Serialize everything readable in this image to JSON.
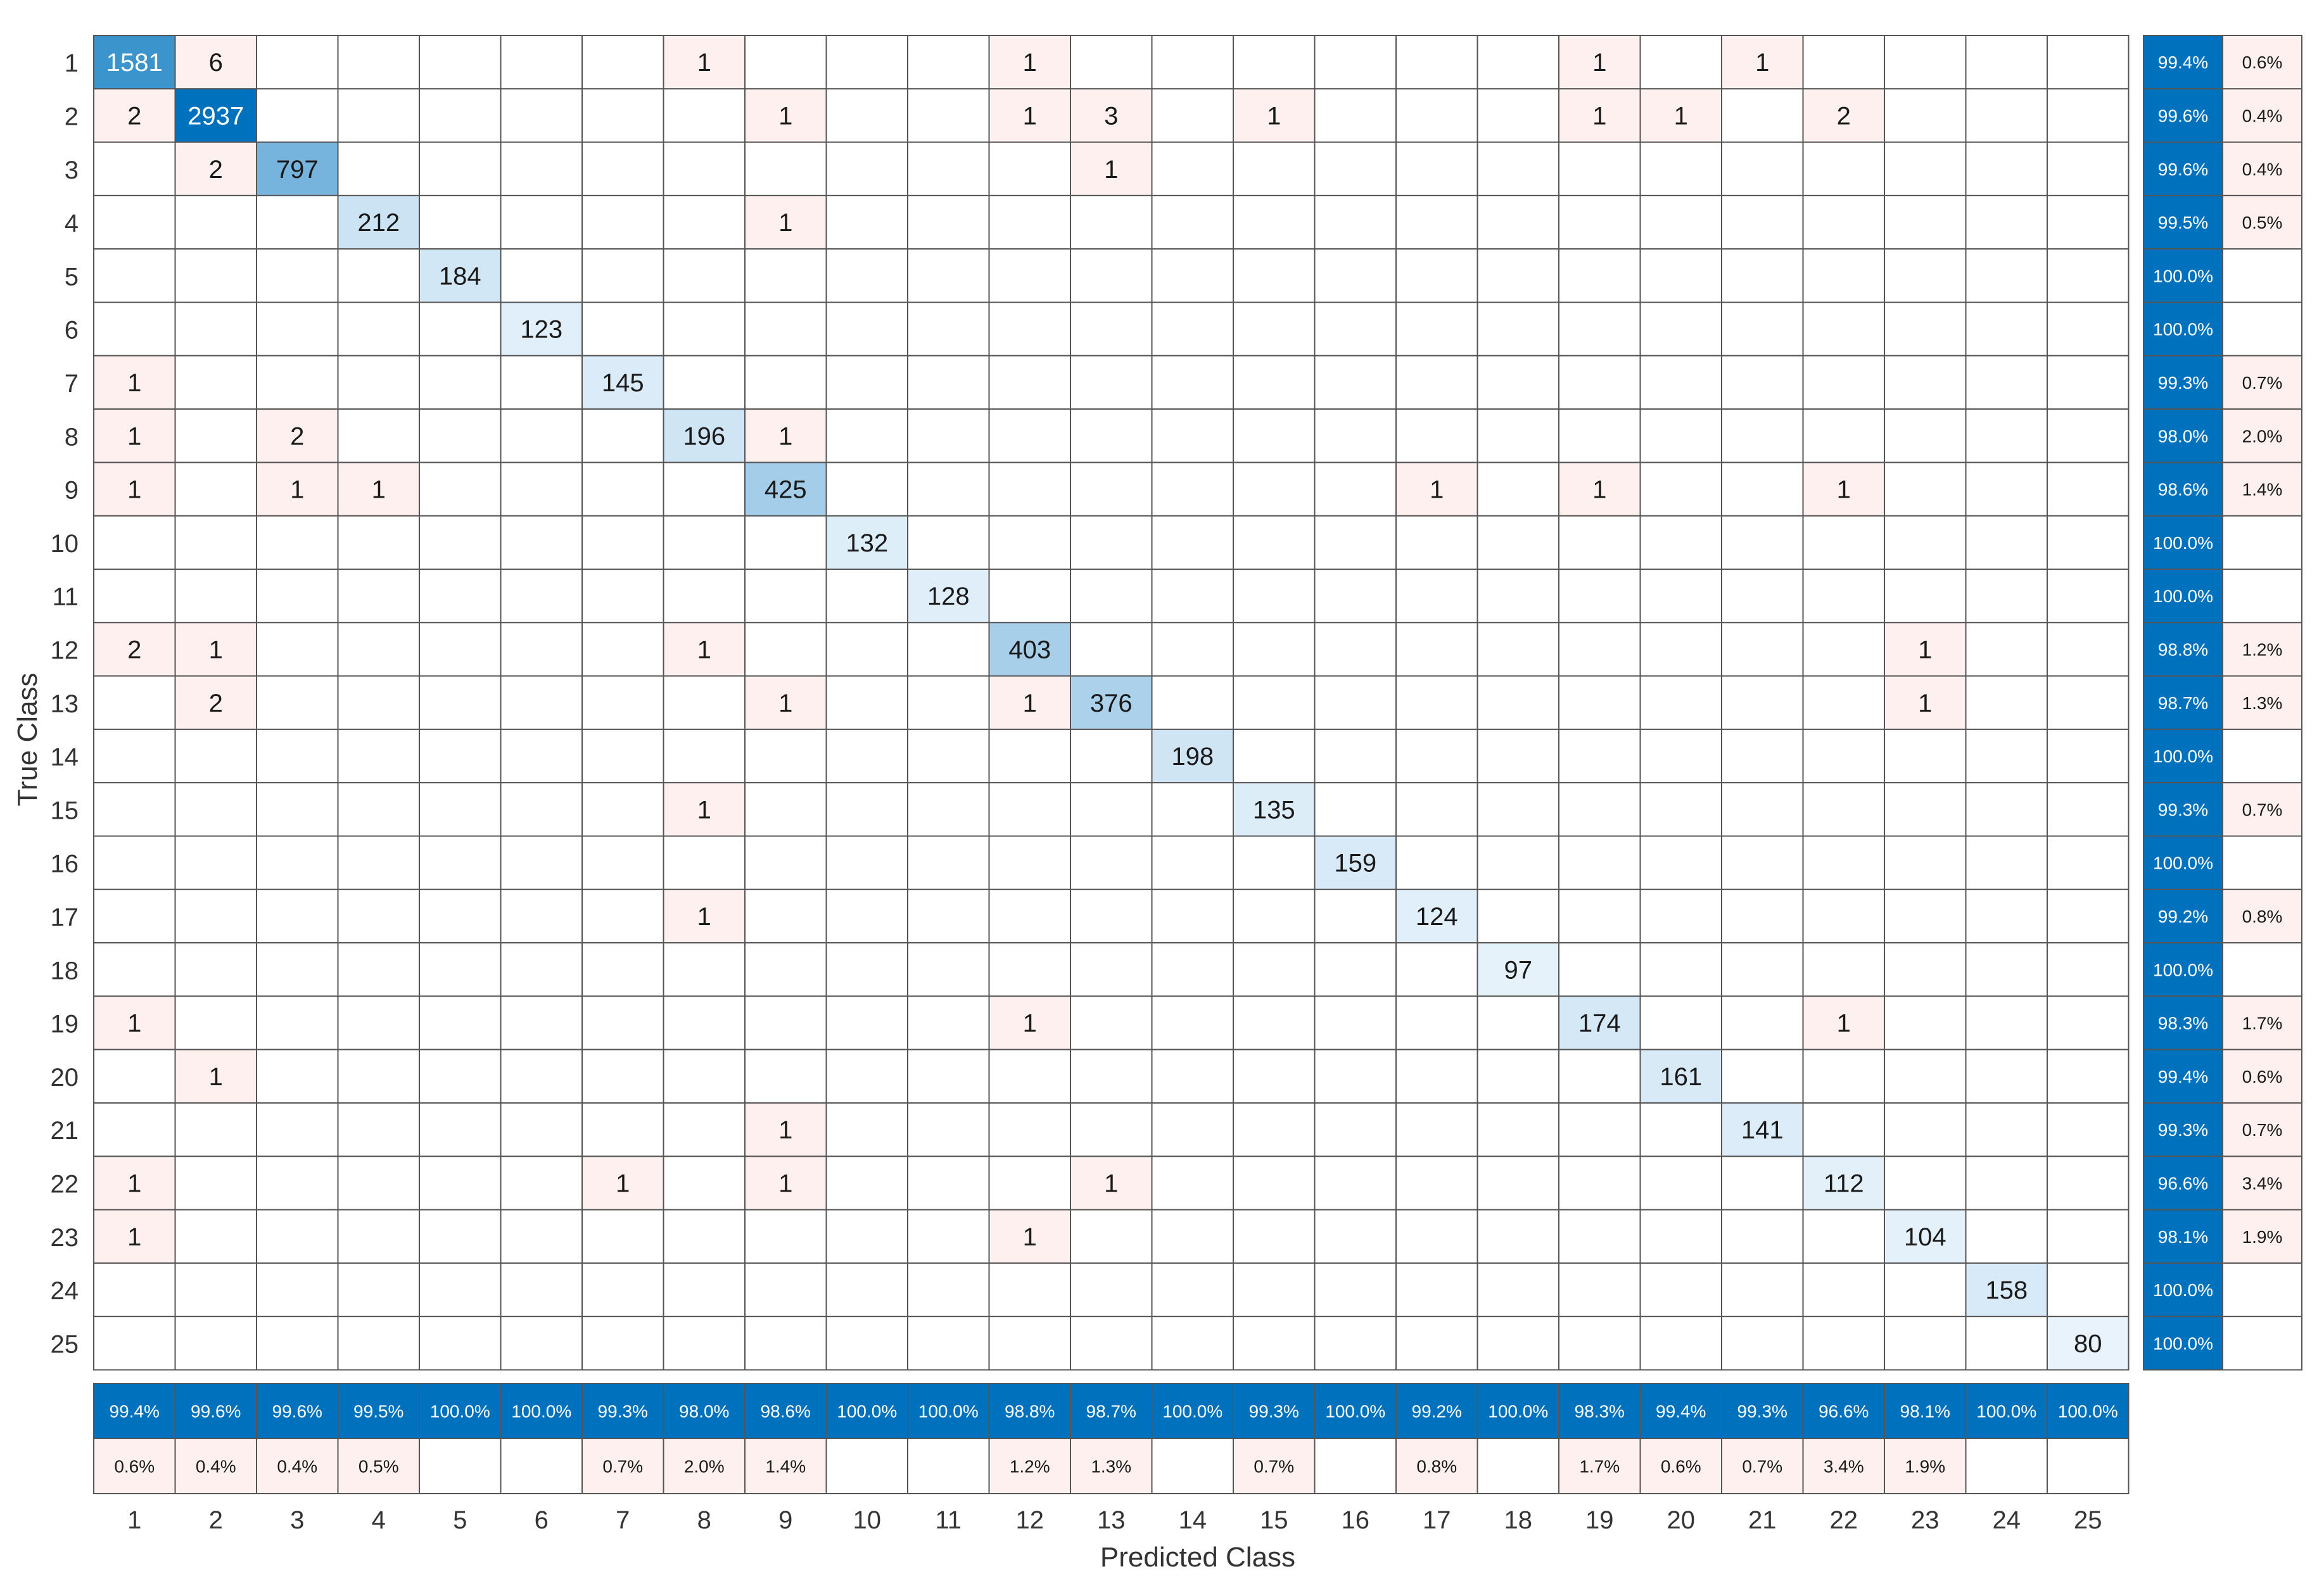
{
  "chart_data": {
    "type": "heatmap",
    "subtype": "confusion-matrix",
    "xlabel": "Predicted Class",
    "ylabel": "True Class",
    "classes": [
      "1",
      "2",
      "3",
      "4",
      "5",
      "6",
      "7",
      "8",
      "9",
      "10",
      "11",
      "12",
      "13",
      "14",
      "15",
      "16",
      "17",
      "18",
      "19",
      "20",
      "21",
      "22",
      "23",
      "24",
      "25"
    ],
    "matrix": [
      [
        1581,
        6,
        0,
        0,
        0,
        0,
        0,
        1,
        0,
        0,
        0,
        1,
        0,
        0,
        0,
        0,
        0,
        0,
        1,
        0,
        1,
        0,
        0,
        0,
        0
      ],
      [
        2,
        2937,
        0,
        0,
        0,
        0,
        0,
        0,
        1,
        0,
        0,
        1,
        3,
        0,
        1,
        0,
        0,
        0,
        1,
        1,
        0,
        2,
        0,
        0,
        0
      ],
      [
        0,
        2,
        797,
        0,
        0,
        0,
        0,
        0,
        0,
        0,
        0,
        0,
        1,
        0,
        0,
        0,
        0,
        0,
        0,
        0,
        0,
        0,
        0,
        0,
        0
      ],
      [
        0,
        0,
        0,
        212,
        0,
        0,
        0,
        0,
        1,
        0,
        0,
        0,
        0,
        0,
        0,
        0,
        0,
        0,
        0,
        0,
        0,
        0,
        0,
        0,
        0
      ],
      [
        0,
        0,
        0,
        0,
        184,
        0,
        0,
        0,
        0,
        0,
        0,
        0,
        0,
        0,
        0,
        0,
        0,
        0,
        0,
        0,
        0,
        0,
        0,
        0,
        0
      ],
      [
        0,
        0,
        0,
        0,
        0,
        123,
        0,
        0,
        0,
        0,
        0,
        0,
        0,
        0,
        0,
        0,
        0,
        0,
        0,
        0,
        0,
        0,
        0,
        0,
        0
      ],
      [
        1,
        0,
        0,
        0,
        0,
        0,
        145,
        0,
        0,
        0,
        0,
        0,
        0,
        0,
        0,
        0,
        0,
        0,
        0,
        0,
        0,
        0,
        0,
        0,
        0
      ],
      [
        1,
        0,
        2,
        0,
        0,
        0,
        0,
        196,
        1,
        0,
        0,
        0,
        0,
        0,
        0,
        0,
        0,
        0,
        0,
        0,
        0,
        0,
        0,
        0,
        0
      ],
      [
        1,
        0,
        1,
        1,
        0,
        0,
        0,
        0,
        425,
        0,
        0,
        0,
        0,
        0,
        0,
        0,
        1,
        0,
        1,
        0,
        0,
        1,
        0,
        0,
        0
      ],
      [
        0,
        0,
        0,
        0,
        0,
        0,
        0,
        0,
        0,
        132,
        0,
        0,
        0,
        0,
        0,
        0,
        0,
        0,
        0,
        0,
        0,
        0,
        0,
        0,
        0
      ],
      [
        0,
        0,
        0,
        0,
        0,
        0,
        0,
        0,
        0,
        0,
        128,
        0,
        0,
        0,
        0,
        0,
        0,
        0,
        0,
        0,
        0,
        0,
        0,
        0,
        0
      ],
      [
        2,
        1,
        0,
        0,
        0,
        0,
        0,
        1,
        0,
        0,
        0,
        403,
        0,
        0,
        0,
        0,
        0,
        0,
        0,
        0,
        0,
        0,
        1,
        0,
        0
      ],
      [
        0,
        2,
        0,
        0,
        0,
        0,
        0,
        0,
        1,
        0,
        0,
        1,
        376,
        0,
        0,
        0,
        0,
        0,
        0,
        0,
        0,
        0,
        1,
        0,
        0
      ],
      [
        0,
        0,
        0,
        0,
        0,
        0,
        0,
        0,
        0,
        0,
        0,
        0,
        0,
        198,
        0,
        0,
        0,
        0,
        0,
        0,
        0,
        0,
        0,
        0,
        0
      ],
      [
        0,
        0,
        0,
        0,
        0,
        0,
        0,
        1,
        0,
        0,
        0,
        0,
        0,
        0,
        135,
        0,
        0,
        0,
        0,
        0,
        0,
        0,
        0,
        0,
        0
      ],
      [
        0,
        0,
        0,
        0,
        0,
        0,
        0,
        0,
        0,
        0,
        0,
        0,
        0,
        0,
        0,
        159,
        0,
        0,
        0,
        0,
        0,
        0,
        0,
        0,
        0
      ],
      [
        0,
        0,
        0,
        0,
        0,
        0,
        0,
        1,
        0,
        0,
        0,
        0,
        0,
        0,
        0,
        0,
        124,
        0,
        0,
        0,
        0,
        0,
        0,
        0,
        0
      ],
      [
        0,
        0,
        0,
        0,
        0,
        0,
        0,
        0,
        0,
        0,
        0,
        0,
        0,
        0,
        0,
        0,
        0,
        97,
        0,
        0,
        0,
        0,
        0,
        0,
        0
      ],
      [
        1,
        0,
        0,
        0,
        0,
        0,
        0,
        0,
        0,
        0,
        0,
        1,
        0,
        0,
        0,
        0,
        0,
        0,
        174,
        0,
        0,
        1,
        0,
        0,
        0
      ],
      [
        0,
        1,
        0,
        0,
        0,
        0,
        0,
        0,
        0,
        0,
        0,
        0,
        0,
        0,
        0,
        0,
        0,
        0,
        0,
        161,
        0,
        0,
        0,
        0,
        0
      ],
      [
        0,
        0,
        0,
        0,
        0,
        0,
        0,
        0,
        1,
        0,
        0,
        0,
        0,
        0,
        0,
        0,
        0,
        0,
        0,
        0,
        141,
        0,
        0,
        0,
        0
      ],
      [
        1,
        0,
        0,
        0,
        0,
        0,
        1,
        0,
        1,
        0,
        0,
        0,
        1,
        0,
        0,
        0,
        0,
        0,
        0,
        0,
        0,
        112,
        0,
        0,
        0
      ],
      [
        1,
        0,
        0,
        0,
        0,
        0,
        0,
        0,
        0,
        0,
        0,
        1,
        0,
        0,
        0,
        0,
        0,
        0,
        0,
        0,
        0,
        0,
        104,
        0,
        0
      ],
      [
        0,
        0,
        0,
        0,
        0,
        0,
        0,
        0,
        0,
        0,
        0,
        0,
        0,
        0,
        0,
        0,
        0,
        0,
        0,
        0,
        0,
        0,
        0,
        158,
        0
      ],
      [
        0,
        0,
        0,
        0,
        0,
        0,
        0,
        0,
        0,
        0,
        0,
        0,
        0,
        0,
        0,
        0,
        0,
        0,
        0,
        0,
        0,
        0,
        0,
        0,
        80
      ]
    ],
    "row_summary": {
      "correct": [
        "99.4%",
        "99.6%",
        "99.6%",
        "99.5%",
        "100.0%",
        "100.0%",
        "99.3%",
        "98.0%",
        "98.6%",
        "100.0%",
        "100.0%",
        "98.8%",
        "98.7%",
        "100.0%",
        "99.3%",
        "100.0%",
        "99.2%",
        "100.0%",
        "98.3%",
        "99.4%",
        "99.3%",
        "96.6%",
        "98.1%",
        "100.0%",
        "100.0%"
      ],
      "incorrect": [
        "0.6%",
        "0.4%",
        "0.4%",
        "0.5%",
        "",
        "",
        "0.7%",
        "2.0%",
        "1.4%",
        "",
        "",
        "1.2%",
        "1.3%",
        "",
        "0.7%",
        "",
        "0.8%",
        "",
        "1.7%",
        "0.6%",
        "0.7%",
        "3.4%",
        "1.9%",
        "",
        ""
      ]
    },
    "column_summary": {
      "correct": [
        "99.4%",
        "99.6%",
        "99.6%",
        "99.5%",
        "100.0%",
        "100.0%",
        "99.3%",
        "98.0%",
        "98.6%",
        "100.0%",
        "100.0%",
        "98.8%",
        "98.7%",
        "100.0%",
        "99.3%",
        "100.0%",
        "99.2%",
        "100.0%",
        "98.3%",
        "99.4%",
        "99.3%",
        "96.6%",
        "98.1%",
        "100.0%",
        "100.0%"
      ],
      "incorrect": [
        "0.6%",
        "0.4%",
        "0.4%",
        "0.5%",
        "",
        "",
        "0.7%",
        "2.0%",
        "1.4%",
        "",
        "",
        "1.2%",
        "1.3%",
        "",
        "0.7%",
        "",
        "0.8%",
        "",
        "1.7%",
        "0.6%",
        "0.7%",
        "3.4%",
        "1.9%",
        "",
        ""
      ]
    },
    "colors": {
      "diagonal_max": "#0072bd",
      "diagonal_min": "#e8f3fb",
      "off_diagonal": "#fdf0ee",
      "summary_correct": "#0072bd",
      "summary_incorrect": "#fdf0ee",
      "grid": "#555555"
    }
  }
}
